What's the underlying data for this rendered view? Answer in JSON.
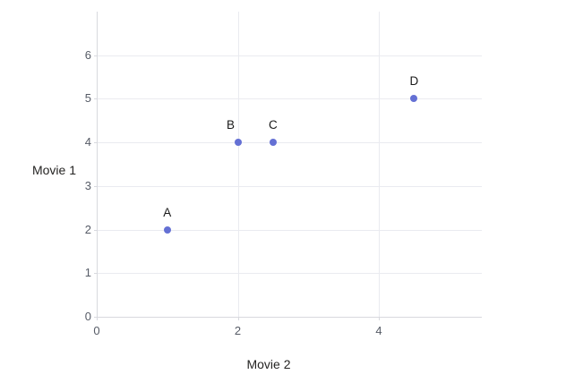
{
  "chart_data": {
    "type": "scatter",
    "title": "",
    "xlabel": "Movie 2",
    "ylabel": "Movie 1",
    "xlim": [
      0,
      5.46
    ],
    "ylim": [
      0,
      7
    ],
    "x_ticks": [
      0,
      2,
      4
    ],
    "y_ticks": [
      0,
      1,
      2,
      3,
      4,
      5,
      6
    ],
    "grid": true,
    "legend": "none",
    "points": [
      {
        "label": "A",
        "x": 1,
        "y": 2
      },
      {
        "label": "B",
        "x": 2,
        "y": 4,
        "label_dx": -8
      },
      {
        "label": "C",
        "x": 2.5,
        "y": 4
      },
      {
        "label": "D",
        "x": 4.5,
        "y": 5
      }
    ],
    "colors": {
      "point": "#6470d4",
      "grid": "#eaebf0",
      "axis_line": "#d8d9de",
      "tick_label": "#565b66",
      "axis_title": "#252423",
      "point_label": "#1a1a1a",
      "background": "#ffffff"
    }
  }
}
